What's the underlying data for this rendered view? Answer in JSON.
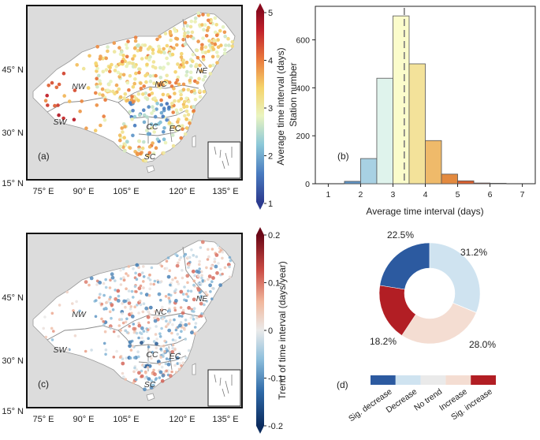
{
  "chart_data": [
    {
      "panel": "(a)",
      "type": "map",
      "coord_labels": {
        "lat": [
          "45° N",
          "30° N",
          "15° N"
        ],
        "lon": [
          "75° E",
          "90° E",
          "105° E",
          "120° E",
          "135° E"
        ]
      },
      "regions": [
        "NW",
        "NE",
        "NC",
        "SW",
        "CC",
        "EC",
        "SC"
      ],
      "colorbar": {
        "label": "Average time interval (days)",
        "ticks": [
          "1",
          "2",
          "3",
          "4",
          "5"
        ],
        "range": [
          1,
          5
        ],
        "colors": [
          "#2c3b8f",
          "#4a7cc0",
          "#8cc8d8",
          "#eaf4c0",
          "#f5d36a",
          "#e9783c",
          "#c0202b",
          "#8a0a1e"
        ]
      }
    },
    {
      "panel": "(b)",
      "type": "bar",
      "xlabel": "Average time interval (days)",
      "ylabel": "Station number",
      "xticks": [
        "1",
        "2",
        "3",
        "4",
        "5",
        "6",
        "7"
      ],
      "yticks": [
        "0",
        "200",
        "400",
        "600"
      ],
      "xlim": [
        0.6,
        7.4
      ],
      "ylim": [
        0,
        740
      ],
      "bins": [
        {
          "from": 1.5,
          "to": 2.0,
          "value": 10,
          "color": "#5f95c7"
        },
        {
          "from": 2.0,
          "to": 2.5,
          "value": 105,
          "color": "#a8d1e3"
        },
        {
          "from": 2.5,
          "to": 3.0,
          "value": 440,
          "color": "#dff3ec"
        },
        {
          "from": 3.0,
          "to": 3.5,
          "value": 700,
          "color": "#fbfccb"
        },
        {
          "from": 3.5,
          "to": 4.0,
          "value": 500,
          "color": "#f3e29a"
        },
        {
          "from": 4.0,
          "to": 4.5,
          "value": 180,
          "color": "#efba6a"
        },
        {
          "from": 4.5,
          "to": 5.0,
          "value": 40,
          "color": "#e38a3f"
        },
        {
          "from": 5.0,
          "to": 5.5,
          "value": 12,
          "color": "#d9602f"
        },
        {
          "from": 5.5,
          "to": 6.0,
          "value": 3,
          "color": "#cc3b2a"
        },
        {
          "from": 6.0,
          "to": 6.5,
          "value": 2,
          "color": "#b21c26"
        }
      ],
      "mean_line": 3.35
    },
    {
      "panel": "(c)",
      "type": "map",
      "coord_labels": {
        "lat": [
          "45° N",
          "30° N",
          "15° N"
        ],
        "lon": [
          "75° E",
          "90° E",
          "105° E",
          "120° E",
          "135° E"
        ]
      },
      "regions": [
        "NW",
        "NE",
        "NC",
        "SW",
        "CC",
        "EC",
        "SC"
      ],
      "colorbar": {
        "label": "Trend of time interval (days/year)",
        "ticks": [
          "0.2",
          "0.1",
          "0",
          "-0.1",
          "-0.2"
        ],
        "range": [
          -0.2,
          0.2
        ],
        "colors": [
          "#0b2b5e",
          "#2f6aa8",
          "#8ebfdc",
          "#eaeaea",
          "#f1b79c",
          "#c94a43",
          "#6a0716"
        ]
      }
    },
    {
      "panel": "(d)",
      "type": "pie",
      "labels": [
        "Sig. decrease",
        "Decrease",
        "No trend",
        "Increase",
        "Sig. increase"
      ],
      "values": [
        22.5,
        31.2,
        0.1,
        28.0,
        18.2
      ],
      "value_labels": [
        "22.5%",
        "31.2%",
        "",
        "28.0%",
        "18.2%"
      ],
      "colors": [
        "#2c5aa0",
        "#cfe3f0",
        "#eaeaea",
        "#f4ddd2",
        "#b21e24"
      ]
    }
  ]
}
